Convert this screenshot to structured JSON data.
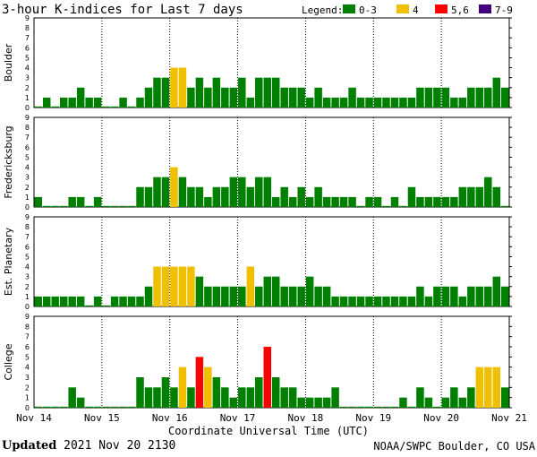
{
  "chart_data": {
    "type": "bar",
    "title": "3-hour K-indices for Last 7 days",
    "xlabel": "Coordinate Universal Time (UTC)",
    "x_tick_labels": [
      "Nov 14",
      "Nov 15",
      "Nov 16",
      "Nov 17",
      "Nov 18",
      "Nov 19",
      "Nov 20",
      "Nov 21"
    ],
    "ylim": [
      0,
      9
    ],
    "y_tick_labels": [
      "0",
      "1",
      "2",
      "3",
      "4",
      "5",
      "6",
      "7",
      "8",
      "9"
    ],
    "legend": {
      "title": "Legend:",
      "placement": "top-right",
      "entries": [
        {
          "label": "0-3",
          "color": "#008000"
        },
        {
          "label": "4",
          "color": "#f0c000"
        },
        {
          "label": "5,6",
          "color": "#ff0000"
        },
        {
          "label": "7-9",
          "color": "#400080"
        }
      ]
    },
    "bars_per_panel": 56,
    "panels": [
      {
        "name": "Boulder",
        "values": [
          0,
          1,
          0,
          1,
          1,
          2,
          1,
          1,
          0,
          0,
          1,
          0,
          1,
          2,
          3,
          3,
          4,
          4,
          2,
          3,
          2,
          3,
          2,
          2,
          3,
          1,
          3,
          3,
          3,
          2,
          2,
          2,
          1,
          2,
          1,
          1,
          1,
          2,
          1,
          1,
          1,
          1,
          1,
          1,
          1,
          2,
          2,
          2,
          2,
          1,
          1,
          2,
          2,
          2,
          3,
          2
        ]
      },
      {
        "name": "Fredericksburg",
        "values": [
          1,
          0,
          0,
          0,
          1,
          1,
          0,
          1,
          0,
          0,
          0,
          0,
          2,
          2,
          3,
          3,
          4,
          3,
          2,
          2,
          1,
          2,
          2,
          3,
          3,
          2,
          3,
          3,
          1,
          2,
          1,
          2,
          1,
          2,
          1,
          1,
          1,
          1,
          0,
          1,
          1,
          0,
          1,
          0,
          2,
          1,
          1,
          1,
          1,
          1,
          2,
          2,
          2,
          3,
          2,
          0
        ]
      },
      {
        "name": "Est. Planetary",
        "values": [
          1,
          1,
          1,
          1,
          1,
          1,
          0,
          1,
          0,
          1,
          1,
          1,
          1,
          2,
          4,
          4,
          4,
          4,
          4,
          3,
          2,
          2,
          2,
          2,
          2,
          4,
          2,
          3,
          3,
          2,
          2,
          2,
          3,
          2,
          2,
          1,
          1,
          1,
          1,
          1,
          1,
          1,
          1,
          1,
          1,
          2,
          1,
          2,
          2,
          2,
          1,
          2,
          2,
          2,
          3,
          2
        ]
      },
      {
        "name": "College",
        "values": [
          0,
          0,
          0,
          0,
          2,
          1,
          0,
          0,
          0,
          0,
          0,
          0,
          3,
          2,
          2,
          3,
          2,
          4,
          2,
          5,
          4,
          3,
          2,
          1,
          2,
          2,
          3,
          6,
          3,
          2,
          2,
          1,
          1,
          1,
          1,
          2,
          0,
          0,
          0,
          0,
          0,
          0,
          0,
          1,
          0,
          2,
          1,
          0,
          1,
          2,
          1,
          2,
          4,
          4,
          4,
          2
        ]
      }
    ]
  },
  "footer": {
    "updated_label": "Updated",
    "updated_value": "2021 Nov 20 2130",
    "source": "NOAA/SWPC Boulder, CO USA"
  }
}
